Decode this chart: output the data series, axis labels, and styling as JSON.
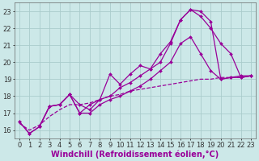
{
  "background_color": "#cce8e8",
  "line_color": "#990099",
  "grid_color": "#aacccc",
  "xlabel": "Windchill (Refroidissement éolien,°C)",
  "xlabel_fontsize": 7.0,
  "tick_fontsize": 6.0,
  "xlim": [
    -0.5,
    23.5
  ],
  "ylim": [
    15.5,
    23.5
  ],
  "yticks": [
    16,
    17,
    18,
    19,
    20,
    21,
    22,
    23
  ],
  "xticks": [
    0,
    1,
    2,
    3,
    4,
    5,
    6,
    7,
    8,
    9,
    10,
    11,
    12,
    13,
    14,
    15,
    16,
    17,
    18,
    19,
    20,
    21,
    22,
    23
  ],
  "series": [
    {
      "x": [
        0,
        1,
        2,
        3,
        4,
        5,
        6,
        7,
        8,
        9,
        10,
        11,
        12,
        13,
        14,
        15,
        16,
        17,
        18,
        19,
        20,
        21,
        22,
        23
      ],
      "y": [
        16.5,
        15.8,
        16.2,
        17.4,
        17.5,
        18.1,
        17.0,
        17.5,
        17.8,
        19.3,
        18.7,
        19.3,
        19.8,
        19.6,
        20.0,
        21.1,
        22.5,
        23.1,
        23.0,
        22.4,
        19.0,
        19.1,
        19.1,
        19.2
      ],
      "marker": "D",
      "markersize": 2.0,
      "linewidth": 0.9,
      "linestyle": "-"
    },
    {
      "x": [
        2,
        3,
        4,
        5,
        6,
        7,
        8,
        9,
        10,
        11,
        12,
        13,
        14,
        15,
        16,
        17,
        18,
        19,
        20,
        21,
        22,
        23
      ],
      "y": [
        16.2,
        17.4,
        17.5,
        18.1,
        17.5,
        17.2,
        17.8,
        18.0,
        18.5,
        18.8,
        19.2,
        19.6,
        20.5,
        21.2,
        22.5,
        23.1,
        22.7,
        22.0,
        21.1,
        20.5,
        19.1,
        19.2
      ],
      "marker": "D",
      "markersize": 2.0,
      "linewidth": 0.9,
      "linestyle": "-"
    },
    {
      "x": [
        0,
        1,
        2,
        3,
        4,
        5,
        6,
        7,
        8,
        9,
        10,
        11,
        12,
        13,
        14,
        15,
        16,
        17,
        18,
        19,
        20,
        21,
        22,
        23
      ],
      "y": [
        16.5,
        15.8,
        16.2,
        17.4,
        17.5,
        18.1,
        17.0,
        17.0,
        17.5,
        17.8,
        18.0,
        18.3,
        18.6,
        19.0,
        19.5,
        20.0,
        21.1,
        21.5,
        20.5,
        19.5,
        19.0,
        19.1,
        19.2,
        19.2
      ],
      "marker": "D",
      "markersize": 2.0,
      "linewidth": 0.9,
      "linestyle": "-"
    },
    {
      "x": [
        0,
        1,
        2,
        3,
        4,
        5,
        6,
        7,
        8,
        9,
        10,
        11,
        12,
        13,
        14,
        15,
        16,
        17,
        18,
        19,
        20,
        21,
        22,
        23
      ],
      "y": [
        16.4,
        16.0,
        16.3,
        16.8,
        17.2,
        17.5,
        17.5,
        17.6,
        17.8,
        18.0,
        18.1,
        18.3,
        18.4,
        18.5,
        18.6,
        18.7,
        18.8,
        18.9,
        19.0,
        19.0,
        19.1,
        19.1,
        19.1,
        19.2
      ],
      "marker": null,
      "markersize": 0,
      "linewidth": 0.9,
      "linestyle": "--"
    }
  ]
}
